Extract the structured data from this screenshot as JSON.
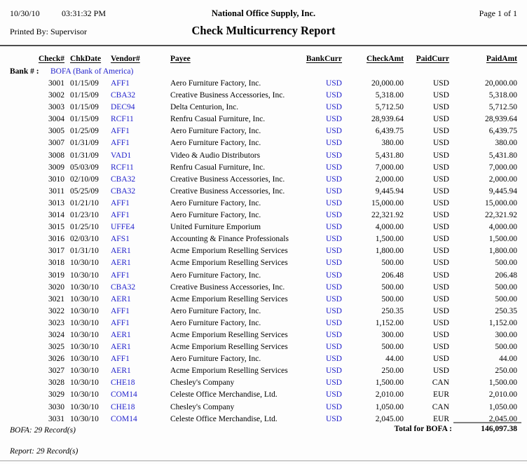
{
  "page": {
    "date": "10/30/10",
    "time": "03:31:32 PM",
    "company": "National Office Supply, Inc.",
    "page_label": "Page 1 of 1",
    "printed_by": "Printed By: Supervisor",
    "title": "Check Multicurrency Report"
  },
  "colors": {
    "link_blue": "#2222cc",
    "rule_dark": "#4d4d4d",
    "rule_gray": "#808080"
  },
  "table": {
    "headers": [
      "Check#",
      "ChkDate",
      "Vendor#",
      "Payee",
      "BankCurr",
      "CheckAmt",
      "PaidCurr",
      "PaidAmt"
    ],
    "bank_label": "Bank # :",
    "bank_value": "BOFA (Bank of America)",
    "rows": [
      {
        "check": "3001",
        "date": "01/15/09",
        "vendor": "AFF1",
        "payee": "Aero Furniture Factory, Inc.",
        "bank_curr": "USD",
        "check_amt": "20,000.00",
        "paid_curr": "USD",
        "paid_amt": "20,000.00"
      },
      {
        "check": "3002",
        "date": "01/15/09",
        "vendor": "CBA32",
        "payee": "Creative Business Accessories, Inc.",
        "bank_curr": "USD",
        "check_amt": "5,318.00",
        "paid_curr": "USD",
        "paid_amt": "5,318.00"
      },
      {
        "check": "3003",
        "date": "01/15/09",
        "vendor": "DEC94",
        "payee": "Delta Centurion, Inc.",
        "bank_curr": "USD",
        "check_amt": "5,712.50",
        "paid_curr": "USD",
        "paid_amt": "5,712.50"
      },
      {
        "check": "3004",
        "date": "01/15/09",
        "vendor": "RCF11",
        "payee": "Renfru Casual Furniture, Inc.",
        "bank_curr": "USD",
        "check_amt": "28,939.64",
        "paid_curr": "USD",
        "paid_amt": "28,939.64"
      },
      {
        "check": "3005",
        "date": "01/25/09",
        "vendor": "AFF1",
        "payee": "Aero Furniture Factory, Inc.",
        "bank_curr": "USD",
        "check_amt": "6,439.75",
        "paid_curr": "USD",
        "paid_amt": "6,439.75"
      },
      {
        "check": "3007",
        "date": "01/31/09",
        "vendor": "AFF1",
        "payee": "Aero Furniture Factory, Inc.",
        "bank_curr": "USD",
        "check_amt": "380.00",
        "paid_curr": "USD",
        "paid_amt": "380.00"
      },
      {
        "check": "3008",
        "date": "01/31/09",
        "vendor": "VAD1",
        "payee": "Video & Audio Distributors",
        "bank_curr": "USD",
        "check_amt": "5,431.80",
        "paid_curr": "USD",
        "paid_amt": "5,431.80"
      },
      {
        "check": "3009",
        "date": "05/03/09",
        "vendor": "RCF11",
        "payee": "Renfru Casual Furniture, Inc.",
        "bank_curr": "USD",
        "check_amt": "7,000.00",
        "paid_curr": "USD",
        "paid_amt": "7,000.00"
      },
      {
        "check": "3010",
        "date": "02/10/09",
        "vendor": "CBA32",
        "payee": "Creative Business Accessories, Inc.",
        "bank_curr": "USD",
        "check_amt": "2,000.00",
        "paid_curr": "USD",
        "paid_amt": "2,000.00"
      },
      {
        "check": "3011",
        "date": "05/25/09",
        "vendor": "CBA32",
        "payee": "Creative Business Accessories, Inc.",
        "bank_curr": "USD",
        "check_amt": "9,445.94",
        "paid_curr": "USD",
        "paid_amt": "9,445.94"
      },
      {
        "check": "3013",
        "date": "01/21/10",
        "vendor": "AFF1",
        "payee": "Aero Furniture Factory, Inc.",
        "bank_curr": "USD",
        "check_amt": "15,000.00",
        "paid_curr": "USD",
        "paid_amt": "15,000.00"
      },
      {
        "check": "3014",
        "date": "01/23/10",
        "vendor": "AFF1",
        "payee": "Aero Furniture Factory, Inc.",
        "bank_curr": "USD",
        "check_amt": "22,321.92",
        "paid_curr": "USD",
        "paid_amt": "22,321.92"
      },
      {
        "check": "3015",
        "date": "01/25/10",
        "vendor": "UFFE4",
        "payee": "United Furniture Emporium",
        "bank_curr": "USD",
        "check_amt": "4,000.00",
        "paid_curr": "USD",
        "paid_amt": "4,000.00"
      },
      {
        "check": "3016",
        "date": "02/03/10",
        "vendor": "AFS1",
        "payee": "Accounting & Finance Professionals",
        "bank_curr": "USD",
        "check_amt": "1,500.00",
        "paid_curr": "USD",
        "paid_amt": "1,500.00"
      },
      {
        "check": "3017",
        "date": "01/31/10",
        "vendor": "AER1",
        "payee": "Acme Emporium Reselling Services",
        "bank_curr": "USD",
        "check_amt": "1,800.00",
        "paid_curr": "USD",
        "paid_amt": "1,800.00"
      },
      {
        "check": "3018",
        "date": "10/30/10",
        "vendor": "AER1",
        "payee": "Acme Emporium Reselling Services",
        "bank_curr": "USD",
        "check_amt": "500.00",
        "paid_curr": "USD",
        "paid_amt": "500.00"
      },
      {
        "check": "3019",
        "date": "10/30/10",
        "vendor": "AFF1",
        "payee": "Aero Furniture Factory, Inc.",
        "bank_curr": "USD",
        "check_amt": "206.48",
        "paid_curr": "USD",
        "paid_amt": "206.48"
      },
      {
        "check": "3020",
        "date": "10/30/10",
        "vendor": "CBA32",
        "payee": "Creative Business Accessories, Inc.",
        "bank_curr": "USD",
        "check_amt": "500.00",
        "paid_curr": "USD",
        "paid_amt": "500.00"
      },
      {
        "check": "3021",
        "date": "10/30/10",
        "vendor": "AER1",
        "payee": "Acme Emporium Reselling Services",
        "bank_curr": "USD",
        "check_amt": "500.00",
        "paid_curr": "USD",
        "paid_amt": "500.00"
      },
      {
        "check": "3022",
        "date": "10/30/10",
        "vendor": "AFF1",
        "payee": "Aero Furniture Factory, Inc.",
        "bank_curr": "USD",
        "check_amt": "250.35",
        "paid_curr": "USD",
        "paid_amt": "250.35"
      },
      {
        "check": "3023",
        "date": "10/30/10",
        "vendor": "AFF1",
        "payee": "Aero Furniture Factory, Inc.",
        "bank_curr": "USD",
        "check_amt": "1,152.00",
        "paid_curr": "USD",
        "paid_amt": "1,152.00"
      },
      {
        "check": "3024",
        "date": "10/30/10",
        "vendor": "AER1",
        "payee": "Acme Emporium Reselling Services",
        "bank_curr": "USD",
        "check_amt": "300.00",
        "paid_curr": "USD",
        "paid_amt": "300.00"
      },
      {
        "check": "3025",
        "date": "10/30/10",
        "vendor": "AER1",
        "payee": "Acme Emporium Reselling Services",
        "bank_curr": "USD",
        "check_amt": "500.00",
        "paid_curr": "USD",
        "paid_amt": "500.00"
      },
      {
        "check": "3026",
        "date": "10/30/10",
        "vendor": "AFF1",
        "payee": "Aero Furniture Factory, Inc.",
        "bank_curr": "USD",
        "check_amt": "44.00",
        "paid_curr": "USD",
        "paid_amt": "44.00"
      },
      {
        "check": "3027",
        "date": "10/30/10",
        "vendor": "AER1",
        "payee": "Acme Emporium Reselling Services",
        "bank_curr": "USD",
        "check_amt": "250.00",
        "paid_curr": "USD",
        "paid_amt": "250.00"
      },
      {
        "check": "3028",
        "date": "10/30/10",
        "vendor": "CHE18",
        "payee": "Chesley's Company",
        "bank_curr": "USD",
        "check_amt": "1,500.00",
        "paid_curr": "CAN",
        "paid_amt": "1,500.00"
      },
      {
        "check": "3029",
        "date": "10/30/10",
        "vendor": "COM14",
        "payee": "Celeste Office Merchandise, Ltd.",
        "bank_curr": "USD",
        "check_amt": "2,010.00",
        "paid_curr": "EUR",
        "paid_amt": "2,010.00"
      },
      {
        "check": "3030",
        "date": "10/30/10",
        "vendor": "CHE18",
        "payee": "Chesley's Company",
        "bank_curr": "USD",
        "check_amt": "1,050.00",
        "paid_curr": "CAN",
        "paid_amt": "1,050.00"
      },
      {
        "check": "3031",
        "date": "10/30/10",
        "vendor": "COM14",
        "payee": "Celeste Office Merchandise, Ltd.",
        "bank_curr": "USD",
        "check_amt": "2,045.00",
        "paid_curr": "EUR",
        "paid_amt": "2,045.00"
      }
    ]
  },
  "footer": {
    "bank_records": "BOFA: 29 Record(s)",
    "total_label": "Total for BOFA :",
    "total_amount": "146,097.38",
    "report_records": "Report: 29 Record(s)"
  }
}
